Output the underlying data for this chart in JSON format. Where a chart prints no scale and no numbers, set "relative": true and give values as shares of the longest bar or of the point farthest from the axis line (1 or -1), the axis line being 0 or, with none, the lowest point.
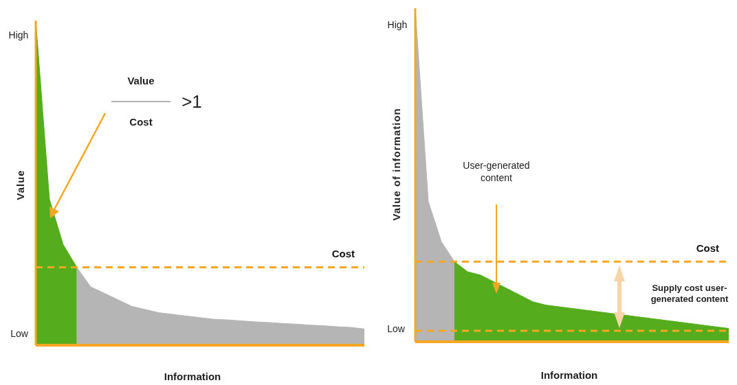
{
  "chart_data": [
    {
      "type": "area",
      "relative": true,
      "xlabel": "Information",
      "ylabel": "Value",
      "categories": [
        null,
        null,
        null,
        null,
        null,
        null,
        null,
        null,
        null,
        null,
        null,
        null,
        null,
        null,
        null,
        null,
        null,
        null,
        null,
        null,
        null,
        null,
        null,
        null,
        null
      ],
      "series": [
        {
          "color": "#55ad1e",
          "values": [
            1,
            0.45,
            0.31,
            0.24,
            null,
            null,
            null,
            null,
            null,
            null,
            null,
            null,
            null,
            null,
            null,
            null,
            null,
            null,
            null,
            null,
            null,
            null,
            null,
            null,
            null
          ]
        },
        {
          "color": "#b5b5b5",
          "values": [
            null,
            null,
            null,
            0.24,
            0.18,
            0.16,
            0.14,
            0.12,
            0.11,
            0.1,
            0.095,
            0.09,
            0.085,
            0.08,
            0.078,
            0.075,
            0.072,
            0.07,
            0.067,
            0.065,
            0.062,
            0.06,
            0.057,
            0.055,
            0.05
          ]
        }
      ],
      "ref_lines": [
        {
          "axis": "y",
          "value": 0.24,
          "label": "Cost",
          "color": "#f5a623",
          "line_style": "dashed"
        }
      ],
      "annotations": [
        "High",
        "Low",
        "Value",
        "Cost",
        ">1"
      ]
    },
    {
      "type": "area",
      "relative": true,
      "xlabel": "Information",
      "ylabel": "Value of information",
      "categories": [
        null,
        null,
        null,
        null,
        null,
        null,
        null,
        null,
        null,
        null,
        null,
        null,
        null,
        null,
        null,
        null,
        null,
        null,
        null,
        null,
        null,
        null,
        null,
        null,
        null
      ],
      "series": [
        {
          "color": "#b5b5b5",
          "values": [
            1,
            0.42,
            0.3,
            0.24,
            null,
            null,
            null,
            null,
            null,
            null,
            null,
            null,
            null,
            null,
            null,
            null,
            null,
            null,
            null,
            null,
            null,
            null,
            null,
            null,
            null
          ]
        },
        {
          "color": "#55ad1e",
          "values": [
            null,
            null,
            null,
            0.24,
            0.21,
            0.2,
            0.18,
            0.16,
            0.14,
            0.12,
            0.11,
            0.105,
            0.1,
            0.095,
            0.09,
            0.085,
            0.08,
            0.075,
            0.07,
            0.065,
            0.06,
            0.055,
            0.05,
            0.045,
            0.04
          ]
        }
      ],
      "ref_lines": [
        {
          "axis": "y",
          "value": 0.24,
          "label": "Cost",
          "color": "#f5a623",
          "line_style": "dashed"
        },
        {
          "axis": "y",
          "value": 0.033,
          "color": "#f5a623",
          "line_style": "dashed"
        }
      ],
      "annotations": [
        "High",
        "Low",
        "User-generated content",
        "Supply cost user-generated content"
      ]
    }
  ]
}
